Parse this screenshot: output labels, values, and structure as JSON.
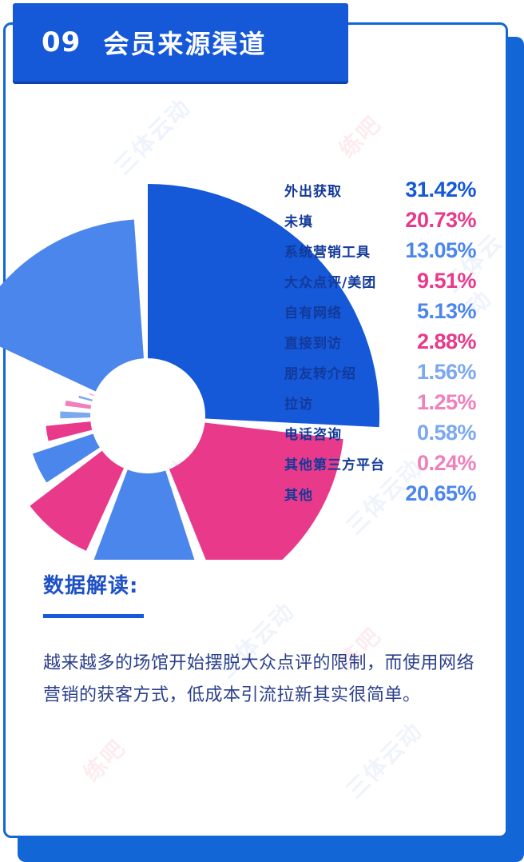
{
  "header": {
    "number": "09",
    "title": "会员来源渠道"
  },
  "colors": {
    "dark_blue": "#1558d8",
    "mid_blue": "#4b86ec",
    "light_blue": "#7aa9ef",
    "pink": "#e8398a",
    "light_pink": "#f080bb"
  },
  "chart_data": {
    "type": "pie",
    "variant": "rose",
    "categories": [
      "外出获取",
      "未填",
      "系统营销工具",
      "大众点评/美团",
      "自有网络",
      "直接到访",
      "朋友转介绍",
      "拉访",
      "电话咨询",
      "其他第三方平台",
      "其他"
    ],
    "values": [
      31.42,
      20.73,
      13.05,
      9.51,
      5.13,
      2.88,
      1.56,
      1.25,
      0.58,
      0.24,
      20.65
    ],
    "labels": [
      "31.42%",
      "20.73%",
      "13.05%",
      "9.51%",
      "5.13%",
      "2.88%",
      "1.56%",
      "1.25%",
      "0.58%",
      "0.24%",
      "20.65%"
    ],
    "value_colors": [
      "#1558d8",
      "#e8398a",
      "#4b86ec",
      "#e8398a",
      "#4b86ec",
      "#e8398a",
      "#7aa9ef",
      "#f080bb",
      "#7aa9ef",
      "#f080bb",
      "#4b86ec"
    ],
    "legend_position": "right"
  },
  "analysis": {
    "heading": "数据解读:",
    "text": "越来越多的场馆开始摆脱大众点评的限制，而使用网络营销的获客方式，低成本引流拉新其实很简单。"
  }
}
